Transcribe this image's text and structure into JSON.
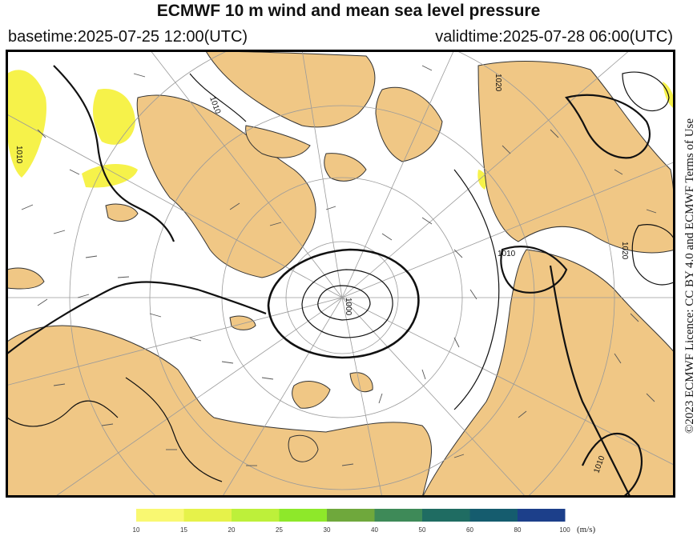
{
  "header": {
    "title": "ECMWF 10 m wind and mean sea level pressure",
    "basetime": "basetime:2025-07-25 12:00(UTC)",
    "validtime": "validtime:2025-07-28 06:00(UTC)"
  },
  "map": {
    "isobar_labels": [
      "1010",
      "1020",
      "1010",
      "1010",
      "1020",
      "1010",
      "1000"
    ],
    "land_color": "#f0c785",
    "sea_color": "#ffffff",
    "strong_wind_color": "#f6f24a"
  },
  "credit": "©2023 ECMWF Licence: CC BY 4.0 and ECMWF Terms of Use",
  "legend": {
    "unit": "(m/s)",
    "ticks": [
      "10",
      "15",
      "20",
      "25",
      "30",
      "40",
      "50",
      "60",
      "80",
      "100"
    ],
    "colors": [
      "#f9f871",
      "#e6f24a",
      "#bdf03a",
      "#8ee82a",
      "#6fa83c",
      "#3e8a58",
      "#1f6c62",
      "#155c6e",
      "#1c3f8a",
      "#2b2fb0"
    ]
  }
}
